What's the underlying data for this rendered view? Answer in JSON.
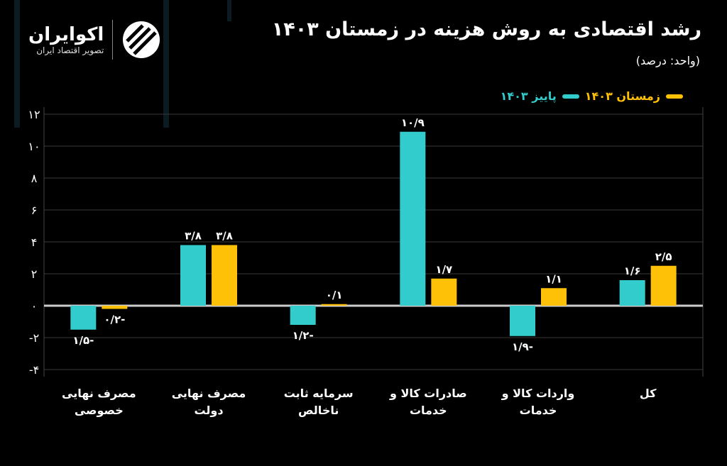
{
  "header": {
    "title": "رشد اقتصادی به روش هزینه در زمستان ۱۴۰۳",
    "subtitle": "(واحد: درصد)"
  },
  "logo": {
    "name": "اکوایران",
    "tagline": "تصویر اقتصاد ایران"
  },
  "colors": {
    "autumn": "#33cccc",
    "winter": "#ffc107",
    "background": "#000000"
  },
  "chart_data": {
    "type": "bar",
    "title": "رشد اقتصادی به روش هزینه در زمستان ۱۴۰۳",
    "ylabel": "درصد",
    "ylim": [
      -4,
      12
    ],
    "yticks": [
      -4,
      -2,
      0,
      2,
      4,
      6,
      8,
      10,
      12
    ],
    "ytick_labels": [
      "-۴",
      "-۲",
      "۰",
      "۲",
      "۴",
      "۶",
      "۸",
      "۱۰",
      "۱۲"
    ],
    "grid": true,
    "legend_position": "top-right",
    "categories": [
      [
        "مصرف نهایی",
        "خصوصی"
      ],
      [
        "مصرف نهایی",
        "دولت"
      ],
      [
        "سرمایه ثابت",
        "ناخالص"
      ],
      [
        "صادرات کالا و",
        "خدمات"
      ],
      [
        "واردات کالا و",
        "خدمات"
      ],
      [
        "کل",
        ""
      ]
    ],
    "series": [
      {
        "name": "پاییز ۱۴۰۳",
        "color": "#33cccc",
        "values": [
          -1.5,
          3.8,
          -1.2,
          10.9,
          -1.9,
          1.6
        ],
        "labels": [
          "-۱/۵",
          "۳/۸",
          "-۱/۲",
          "۱۰/۹",
          "-۱/۹",
          "۱/۶"
        ]
      },
      {
        "name": "زمستان ۱۴۰۳",
        "color": "#ffc107",
        "values": [
          -0.2,
          3.8,
          0.1,
          1.7,
          1.1,
          2.5
        ],
        "labels": [
          "-۰/۲",
          "۳/۸",
          "۰/۱",
          "۱/۷",
          "۱/۱",
          "۲/۵"
        ]
      }
    ]
  }
}
